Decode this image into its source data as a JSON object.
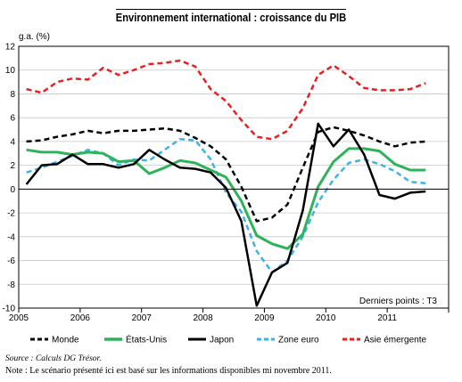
{
  "header": {
    "title": "Environnement international : croissance du PIB"
  },
  "footer": {
    "source": "Source : Calculs DG Trésor.",
    "note": "Note : Le scénario présenté ici est basé sur les informations disponibles mi novembre 2011."
  },
  "chart_data": {
    "type": "line",
    "title": "Environnement international : croissance du PIB",
    "ylabel": "g.a. (%)",
    "xlabel": "",
    "annotation": "Derniers points : T3",
    "x": [
      "2005T1",
      "2005T2",
      "2005T3",
      "2005T4",
      "2006T1",
      "2006T2",
      "2006T3",
      "2006T4",
      "2007T1",
      "2007T2",
      "2007T3",
      "2007T4",
      "2008T1",
      "2008T2",
      "2008T3",
      "2008T4",
      "2009T1",
      "2009T2",
      "2009T3",
      "2009T4",
      "2010T1",
      "2010T2",
      "2010T3",
      "2010T4",
      "2011T1",
      "2011T2",
      "2011T3"
    ],
    "xticks": [
      "2005",
      "2006",
      "2007",
      "2008",
      "2009",
      "2010",
      "2011"
    ],
    "ylim": [
      -10,
      12
    ],
    "yticks": [
      -10,
      -8,
      -6,
      -4,
      -2,
      0,
      2,
      4,
      6,
      8,
      10,
      12
    ],
    "grid": true,
    "legend": "bottom",
    "series": [
      {
        "name": "Monde",
        "color": "#000000",
        "style": "dashed",
        "values": [
          4.0,
          4.1,
          4.4,
          4.6,
          4.9,
          4.7,
          4.9,
          4.9,
          5.0,
          5.1,
          4.9,
          4.3,
          3.6,
          2.5,
          0.2,
          -2.7,
          -2.4,
          -1.3,
          1.8,
          4.8,
          5.2,
          4.9,
          4.5,
          4.0,
          3.6,
          3.9,
          4.0
        ]
      },
      {
        "name": "États-Unis",
        "color": "#2db35a",
        "style": "solid",
        "values": [
          3.3,
          3.1,
          3.1,
          2.9,
          3.1,
          3.0,
          2.3,
          2.4,
          1.3,
          1.8,
          2.4,
          2.2,
          1.6,
          1.0,
          -1.0,
          -3.9,
          -4.6,
          -5.0,
          -3.8,
          0.2,
          2.3,
          3.4,
          3.4,
          3.2,
          2.1,
          1.6,
          1.6
        ]
      },
      {
        "name": "Japon",
        "color": "#000000",
        "style": "solid",
        "values": [
          0.4,
          2.0,
          2.1,
          2.9,
          2.1,
          2.1,
          1.8,
          2.1,
          3.3,
          2.5,
          1.8,
          1.7,
          1.4,
          0.1,
          -2.7,
          -9.8,
          -7.0,
          -6.2,
          -1.8,
          5.5,
          3.6,
          5.0,
          2.9,
          -0.5,
          -0.8,
          -0.3,
          -0.2
        ]
      },
      {
        "name": "Zone euro",
        "color": "#3fb2e8",
        "style": "dashed",
        "values": [
          1.4,
          1.8,
          2.3,
          2.8,
          3.3,
          3.0,
          2.0,
          2.5,
          2.4,
          3.3,
          4.2,
          4.1,
          2.5,
          -0.3,
          -1.9,
          -5.2,
          -7.0,
          -6.0,
          -4.0,
          -1.1,
          0.8,
          2.2,
          2.5,
          2.1,
          1.5,
          0.6,
          0.5
        ]
      },
      {
        "name": "Asie émergente",
        "color": "#e8201f",
        "style": "dashed",
        "values": [
          8.4,
          8.1,
          9.0,
          9.3,
          9.2,
          10.2,
          9.6,
          10.0,
          10.5,
          10.6,
          10.8,
          10.3,
          8.4,
          7.4,
          5.8,
          4.4,
          4.2,
          4.9,
          6.8,
          9.6,
          10.4,
          9.5,
          8.5,
          8.3,
          8.3,
          8.4,
          8.9
        ]
      }
    ]
  }
}
